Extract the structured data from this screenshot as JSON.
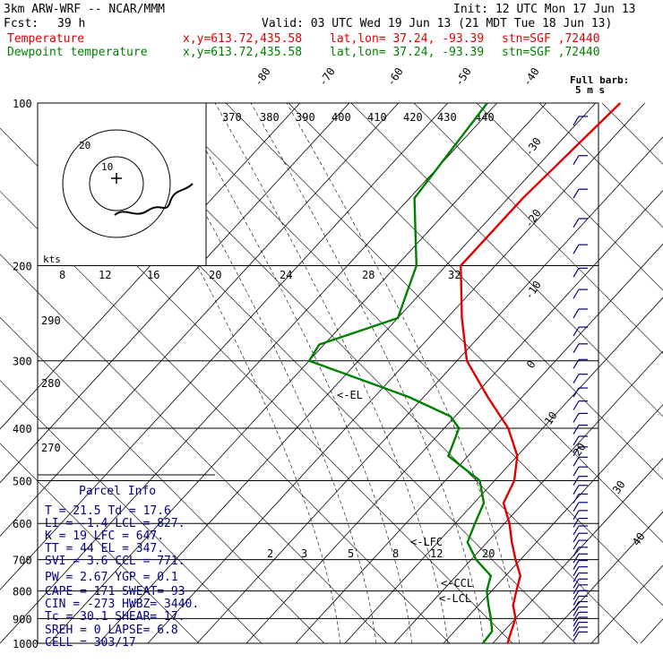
{
  "header": {
    "model": "3km ARW-WRF -- NCAR/MMM",
    "init": "Init: 12 UTC Mon 17 Jun 13",
    "fcst_label": "Fcst:",
    "fcst_value": "39 h",
    "valid": "Valid: 03 UTC Wed 19 Jun 13 (21 MDT Tue 18 Jun 13)",
    "rows": [
      {
        "name": "Temperature",
        "xy": "x,y=613.72,435.58",
        "latlon": "lat,lon= 37.24, -93.39",
        "stn": "stn=SGF ,72440",
        "color": "#e00000"
      },
      {
        "name": "Dewpoint temperature",
        "xy": "x,y=613.72,435.58",
        "latlon": "lat,lon= 37.24, -93.39",
        "stn": "stn=SGF ,72440",
        "color": "#008000"
      }
    ]
  },
  "barb_legend": {
    "line1": "Full barb:",
    "line2": "5 m s"
  },
  "hodograph": {
    "kts_label": "kts",
    "ring_labels": [
      "20",
      "10"
    ]
  },
  "parcel": {
    "title": "Parcel Info",
    "rows": [
      "T  =   21.5  Td =  17.6",
      "LI =   -1.4  LCL =  827.",
      "K  =     19  LFC =  647.",
      "TT =     44  EL  =  347.",
      "SVI =   3.6  CCL =  771.",
      "PW =   2.67  YGP =   0.1",
      "CAPE =  171  SWEAT=   93",
      "CIN =  -273  HWBZ= 3440.",
      "Tc =   30.1  SHEAR=  17.",
      "SREH =    0  LAPSE=  6.8",
      "CELL = 303/17"
    ]
  },
  "chart_data": {
    "type": "line",
    "title": "",
    "xlabel": "",
    "ylabel": "",
    "pressure_levels": [
      100,
      200,
      300,
      400,
      500,
      600,
      700,
      800,
      900,
      1000
    ],
    "pressure_range": [
      100,
      1000
    ],
    "isotherm_labels": [
      "-80",
      "-70",
      "-60",
      "-50",
      "-40",
      "-30",
      "-20",
      "-10",
      "0",
      "10",
      "20",
      "30",
      "40"
    ],
    "theta_labels": [
      "370",
      "380",
      "390",
      "400",
      "410",
      "420",
      "430",
      "440",
      "290",
      "280",
      "270"
    ],
    "speed_labels": [
      "8",
      "12",
      "16",
      "20",
      "24",
      "28",
      "32"
    ],
    "mixing_ratio_labels": [
      "2",
      "3",
      "5",
      "8",
      "12",
      "20"
    ],
    "annotations": [
      "<-EL",
      "<-LFC",
      "<-CCL",
      "<-LCL"
    ],
    "series": [
      {
        "name": "Temperature",
        "color": "#e00000",
        "points": [
          [
            100,
            -55
          ],
          [
            150,
            -57
          ],
          [
            200,
            -57
          ],
          [
            250,
            -47
          ],
          [
            300,
            -38
          ],
          [
            350,
            -27
          ],
          [
            400,
            -17
          ],
          [
            450,
            -10
          ],
          [
            500,
            -6
          ],
          [
            550,
            -4
          ],
          [
            600,
            1
          ],
          [
            650,
            5
          ],
          [
            700,
            9
          ],
          [
            750,
            13
          ],
          [
            800,
            15
          ],
          [
            850,
            17
          ],
          [
            900,
            20
          ],
          [
            950,
            21.5
          ],
          [
            1000,
            23
          ]
        ]
      },
      {
        "name": "Dewpoint temperature",
        "color": "#008000",
        "points": [
          [
            100,
            -82
          ],
          [
            150,
            -79
          ],
          [
            200,
            -66
          ],
          [
            250,
            -60
          ],
          [
            280,
            -71
          ],
          [
            300,
            -70
          ],
          [
            350,
            -43
          ],
          [
            380,
            -31
          ],
          [
            400,
            -27
          ],
          [
            450,
            -24
          ],
          [
            500,
            -13
          ],
          [
            550,
            -8
          ],
          [
            600,
            -6
          ],
          [
            650,
            -4
          ],
          [
            700,
            1
          ],
          [
            750,
            7
          ],
          [
            800,
            9
          ],
          [
            850,
            12
          ],
          [
            900,
            15
          ],
          [
            950,
            17.6
          ],
          [
            1000,
            18
          ]
        ]
      }
    ],
    "grid": true
  }
}
